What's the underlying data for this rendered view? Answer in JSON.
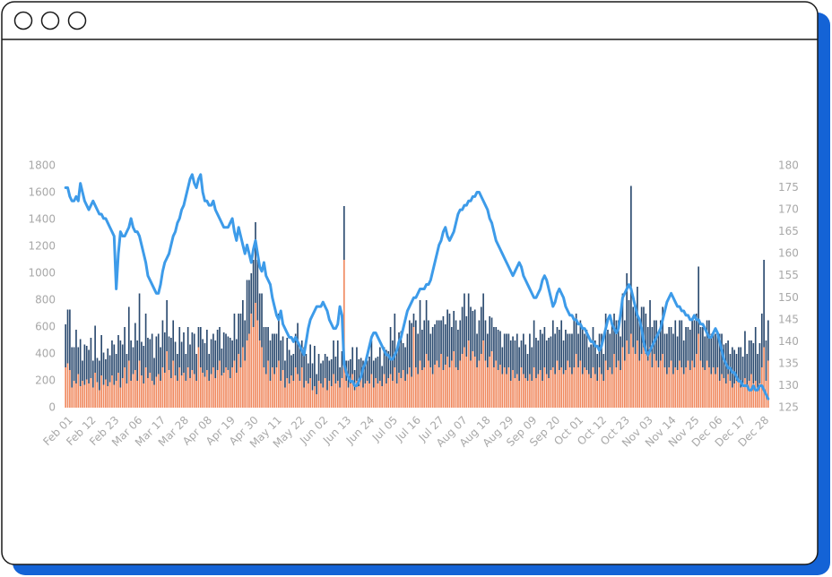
{
  "chart_data": {
    "type": "bar",
    "stacked": true,
    "grid": false,
    "categories": [
      "Feb 01",
      null,
      null,
      null,
      null,
      null,
      null,
      null,
      null,
      null,
      null,
      "Feb 12",
      null,
      null,
      null,
      null,
      null,
      null,
      null,
      null,
      null,
      null,
      "Feb 23",
      null,
      null,
      null,
      null,
      null,
      null,
      null,
      null,
      null,
      null,
      "Mar 06",
      null,
      null,
      null,
      null,
      null,
      null,
      null,
      null,
      null,
      null,
      "Mar 17",
      null,
      null,
      null,
      null,
      null,
      null,
      null,
      null,
      null,
      null,
      "Mar 28",
      null,
      null,
      null,
      null,
      null,
      null,
      null,
      null,
      null,
      null,
      "Apr 08",
      null,
      null,
      null,
      null,
      null,
      null,
      null,
      null,
      null,
      null,
      "Apr 19",
      null,
      null,
      null,
      null,
      null,
      null,
      null,
      null,
      null,
      null,
      "Apr 30",
      null,
      null,
      null,
      null,
      null,
      null,
      null,
      null,
      null,
      null,
      "May 11",
      null,
      null,
      null,
      null,
      null,
      null,
      null,
      null,
      null,
      null,
      "May 22",
      null,
      null,
      null,
      null,
      null,
      null,
      null,
      null,
      null,
      null,
      "Jun 02",
      null,
      null,
      null,
      null,
      null,
      null,
      null,
      null,
      null,
      null,
      "Jun 13",
      null,
      null,
      null,
      null,
      null,
      null,
      null,
      null,
      null,
      null,
      "Jun 24",
      null,
      null,
      null,
      null,
      null,
      null,
      null,
      null,
      null,
      null,
      "Jul 05",
      null,
      null,
      null,
      null,
      null,
      null,
      null,
      null,
      null,
      null,
      "Jul 16",
      null,
      null,
      null,
      null,
      null,
      null,
      null,
      null,
      null,
      null,
      "Jul 27",
      null,
      null,
      null,
      null,
      null,
      null,
      null,
      null,
      null,
      null,
      "Aug 07",
      null,
      null,
      null,
      null,
      null,
      null,
      null,
      null,
      null,
      null,
      "Aug 18",
      null,
      null,
      null,
      null,
      null,
      null,
      null,
      null,
      null,
      null,
      "Aug 29",
      null,
      null,
      null,
      null,
      null,
      null,
      null,
      null,
      null,
      null,
      "Sep 09",
      null,
      null,
      null,
      null,
      null,
      null,
      null,
      null,
      null,
      null,
      "Sep 20",
      null,
      null,
      null,
      null,
      null,
      null,
      null,
      null,
      null,
      null,
      "Oct 01",
      null,
      null,
      null,
      null,
      null,
      null,
      null,
      null,
      null,
      null,
      "Oct 12",
      null,
      null,
      null,
      null,
      null,
      null,
      null,
      null,
      null,
      null,
      "Oct 23",
      null,
      null,
      null,
      null,
      null,
      null,
      null,
      null,
      null,
      null,
      "Nov 03",
      null,
      null,
      null,
      null,
      null,
      null,
      null,
      null,
      null,
      null,
      "Nov 14",
      null,
      null,
      null,
      null,
      null,
      null,
      null,
      null,
      null,
      null,
      "Nov 25",
      null,
      null,
      null,
      null,
      null,
      null,
      null,
      null,
      null,
      null,
      "Dec 06",
      null,
      null,
      null,
      null,
      null,
      null,
      null,
      null,
      null,
      null,
      "Dec 17",
      null,
      null,
      null,
      null,
      null,
      null,
      null,
      null,
      null,
      null,
      "Dec 28",
      null,
      null,
      null
    ],
    "series": [
      {
        "type": "bar",
        "color": "#f0895f",
        "values": [
          300,
          330,
          280,
          150,
          200,
          180,
          250,
          160,
          200,
          170,
          210,
          180,
          220,
          150,
          260,
          190,
          130,
          240,
          170,
          210,
          160,
          190,
          240,
          170,
          200,
          260,
          150,
          220,
          300,
          180,
          350,
          200,
          250,
          280,
          200,
          350,
          240,
          180,
          300,
          220,
          260,
          200,
          170,
          230,
          250,
          200,
          300,
          260,
          420,
          280,
          220,
          350,
          240,
          200,
          300,
          240,
          260,
          200,
          300,
          220,
          280,
          250,
          200,
          450,
          300,
          260,
          230,
          280,
          200,
          250,
          300,
          220,
          280,
          350,
          240,
          260,
          300,
          280,
          220,
          300,
          350,
          260,
          400,
          300,
          450,
          350,
          500,
          550,
          700,
          600,
          780,
          650,
          500,
          450,
          300,
          250,
          350,
          200,
          300,
          250,
          300,
          350,
          200,
          280,
          150,
          220,
          180,
          240,
          200,
          300,
          250,
          200,
          300,
          150,
          200,
          180,
          220,
          130,
          160,
          100,
          200,
          180,
          150,
          220,
          130,
          200,
          160,
          250,
          180,
          200,
          150,
          220,
          1100,
          200,
          150,
          180,
          250,
          130,
          200,
          160,
          220,
          150,
          180,
          200,
          180,
          250,
          150,
          220,
          180,
          200,
          160,
          250,
          180,
          220,
          250,
          200,
          300,
          180,
          260,
          220,
          280,
          200,
          250,
          300,
          230,
          600,
          300,
          250,
          350,
          280,
          300,
          400,
          350,
          300,
          250,
          320,
          350,
          300,
          400,
          280,
          320,
          380,
          300,
          350,
          420,
          300,
          280,
          350,
          400,
          450,
          380,
          500,
          350,
          420,
          380,
          300,
          350,
          400,
          500,
          350,
          300,
          380,
          420,
          300,
          350,
          280,
          320,
          250,
          300,
          250,
          300,
          200,
          280,
          220,
          250,
          200,
          300,
          250,
          220,
          200,
          250,
          200,
          300,
          220,
          250,
          280,
          200,
          300,
          250,
          220,
          280,
          300,
          250,
          350,
          280,
          300,
          250,
          280,
          350,
          300,
          250,
          300,
          400,
          300,
          350,
          250,
          300,
          280,
          250,
          220,
          300,
          250,
          200,
          300,
          250,
          200,
          350,
          280,
          300,
          250,
          400,
          300,
          350,
          280,
          450,
          350,
          500,
          400,
          550,
          450,
          400,
          500,
          350,
          400,
          450,
          400,
          350,
          450,
          300,
          400,
          350,
          300,
          350,
          400,
          300,
          250,
          300,
          350,
          250,
          300,
          280,
          350,
          300,
          250,
          300,
          350,
          280,
          350,
          300,
          400,
          550,
          350,
          300,
          280,
          350,
          300,
          250,
          300,
          250,
          300,
          200,
          250,
          220,
          180,
          250,
          200,
          150,
          180,
          200,
          200,
          150,
          180,
          220,
          150,
          200,
          250,
          180,
          200,
          150,
          180,
          300,
          450,
          200,
          350
        ]
      },
      {
        "type": "bar",
        "color": "#2b4a6f",
        "values": [
          320,
          400,
          450,
          300,
          250,
          400,
          200,
          350,
          150,
          300,
          250,
          250,
          300,
          200,
          350,
          180,
          220,
          300,
          240,
          150,
          280,
          200,
          260,
          300,
          200,
          280,
          350,
          250,
          300,
          220,
          400,
          300,
          200,
          350,
          300,
          500,
          250,
          280,
          400,
          300,
          250,
          350,
          200,
          300,
          300,
          250,
          350,
          300,
          380,
          250,
          300,
          300,
          250,
          200,
          300,
          250,
          300,
          200,
          300,
          250,
          280,
          300,
          200,
          150,
          300,
          250,
          250,
          300,
          200,
          260,
          250,
          280,
          300,
          250,
          200,
          300,
          250,
          250,
          300,
          200,
          350,
          250,
          300,
          400,
          350,
          300,
          450,
          400,
          300,
          500,
          600,
          450,
          350,
          400,
          300,
          350,
          250,
          300,
          250,
          300,
          250,
          350,
          300,
          250,
          200,
          300,
          250,
          150,
          200,
          250,
          380,
          250,
          200,
          300,
          200,
          150,
          250,
          200,
          300,
          150,
          200,
          150,
          200,
          180,
          250,
          150,
          200,
          250,
          200,
          300,
          150,
          200,
          400,
          150,
          200,
          180,
          200,
          150,
          250,
          200,
          150,
          200,
          150,
          150,
          200,
          250,
          200,
          150,
          200,
          250,
          150,
          200,
          250,
          200,
          350,
          300,
          400,
          250,
          300,
          350,
          200,
          250,
          300,
          350,
          400,
          100,
          350,
          300,
          450,
          300,
          350,
          400,
          300,
          250,
          350,
          300,
          300,
          350,
          250,
          400,
          300,
          350,
          400,
          250,
          300,
          350,
          300,
          300,
          350,
          400,
          300,
          350,
          400,
          300,
          350,
          250,
          300,
          350,
          350,
          300,
          250,
          300,
          250,
          300,
          250,
          300,
          250,
          200,
          250,
          300,
          250,
          300,
          250,
          280,
          300,
          250,
          200,
          300,
          250,
          200,
          300,
          250,
          350,
          300,
          250,
          300,
          350,
          300,
          250,
          300,
          250,
          350,
          300,
          250,
          300,
          350,
          250,
          300,
          200,
          250,
          300,
          350,
          300,
          250,
          300,
          350,
          250,
          300,
          200,
          250,
          300,
          250,
          200,
          250,
          300,
          200,
          350,
          300,
          250,
          400,
          300,
          350,
          300,
          250,
          400,
          300,
          500,
          400,
          1100,
          300,
          350,
          400,
          300,
          350,
          300,
          300,
          250,
          350,
          300,
          250,
          300,
          250,
          300,
          350,
          250,
          300,
          300,
          250,
          300,
          350,
          250,
          300,
          350,
          250,
          300,
          250,
          300,
          300,
          350,
          300,
          500,
          250,
          300,
          250,
          300,
          350,
          300,
          250,
          300,
          250,
          350,
          300,
          250,
          300,
          250,
          200,
          300,
          250,
          200,
          250,
          300,
          200,
          350,
          250,
          300,
          250,
          300,
          400,
          250,
          300,
          400,
          650,
          300,
          300
        ]
      },
      {
        "type": "line",
        "axis": "y2",
        "color": "#3d9be9",
        "values": [
          175,
          175,
          173,
          172,
          172,
          173,
          172,
          176,
          174,
          172,
          171,
          170,
          171,
          172,
          171,
          170,
          169,
          169,
          168,
          168,
          167,
          166,
          165,
          164,
          152,
          160,
          165,
          164,
          164,
          165,
          166,
          168,
          166,
          165,
          165,
          164,
          162,
          160,
          158,
          155,
          154,
          153,
          152,
          151,
          151,
          153,
          156,
          158,
          159,
          160,
          162,
          164,
          165,
          167,
          168,
          170,
          171,
          173,
          175,
          177,
          178,
          176,
          175,
          177,
          178,
          174,
          172,
          172,
          171,
          171,
          172,
          170,
          169,
          168,
          167,
          166,
          166,
          166,
          167,
          168,
          165,
          163,
          166,
          164,
          162,
          160,
          162,
          160,
          158,
          161,
          163,
          160,
          157,
          156,
          158,
          155,
          154,
          153,
          150,
          148,
          146,
          145,
          147,
          144,
          143,
          142,
          141,
          141,
          140,
          141,
          140,
          139,
          138,
          137,
          140,
          143,
          145,
          146,
          147,
          148,
          148,
          148,
          149,
          148,
          147,
          145,
          144,
          143,
          143,
          144,
          148,
          146,
          135,
          133,
          132,
          131,
          131,
          130,
          130,
          131,
          132,
          134,
          135,
          137,
          139,
          141,
          142,
          142,
          141,
          140,
          139,
          138,
          137,
          137,
          136,
          136,
          137,
          138,
          140,
          141,
          143,
          145,
          147,
          148,
          149,
          150,
          150,
          151,
          152,
          152,
          152,
          153,
          153,
          154,
          156,
          158,
          160,
          162,
          163,
          165,
          166,
          164,
          163,
          164,
          165,
          167,
          169,
          170,
          170,
          171,
          171,
          172,
          172,
          173,
          173,
          174,
          174,
          173,
          172,
          171,
          170,
          168,
          167,
          165,
          163,
          162,
          161,
          160,
          159,
          158,
          157,
          156,
          155,
          156,
          157,
          158,
          157,
          155,
          154,
          153,
          152,
          151,
          150,
          150,
          151,
          152,
          154,
          155,
          154,
          152,
          150,
          148,
          149,
          151,
          152,
          151,
          150,
          148,
          147,
          146,
          146,
          145,
          145,
          144,
          144,
          143,
          143,
          142,
          141,
          140,
          140,
          139,
          139,
          138,
          139,
          141,
          143,
          145,
          146,
          144,
          143,
          142,
          143,
          146,
          150,
          151,
          152,
          153,
          152,
          150,
          148,
          146,
          145,
          143,
          140,
          138,
          137,
          138,
          139,
          140,
          141,
          142,
          143,
          145,
          147,
          149,
          150,
          151,
          150,
          149,
          148,
          148,
          147,
          147,
          146,
          146,
          145,
          145,
          146,
          145,
          145,
          144,
          144,
          143,
          142,
          141,
          141,
          142,
          143,
          142,
          140,
          138,
          136,
          135,
          134,
          134,
          133,
          133,
          132,
          131,
          131,
          130,
          130,
          130,
          129,
          129,
          130,
          129,
          129,
          130,
          130,
          129,
          128,
          127
        ]
      }
    ],
    "ylim": [
      0,
      1800
    ],
    "yticks": [
      0,
      200,
      400,
      600,
      800,
      1000,
      1200,
      1400,
      1600,
      1800
    ],
    "y2lim": [
      125,
      180
    ],
    "y2ticks": [
      125,
      130,
      135,
      140,
      145,
      150,
      155,
      160,
      165,
      170,
      175,
      180
    ]
  }
}
